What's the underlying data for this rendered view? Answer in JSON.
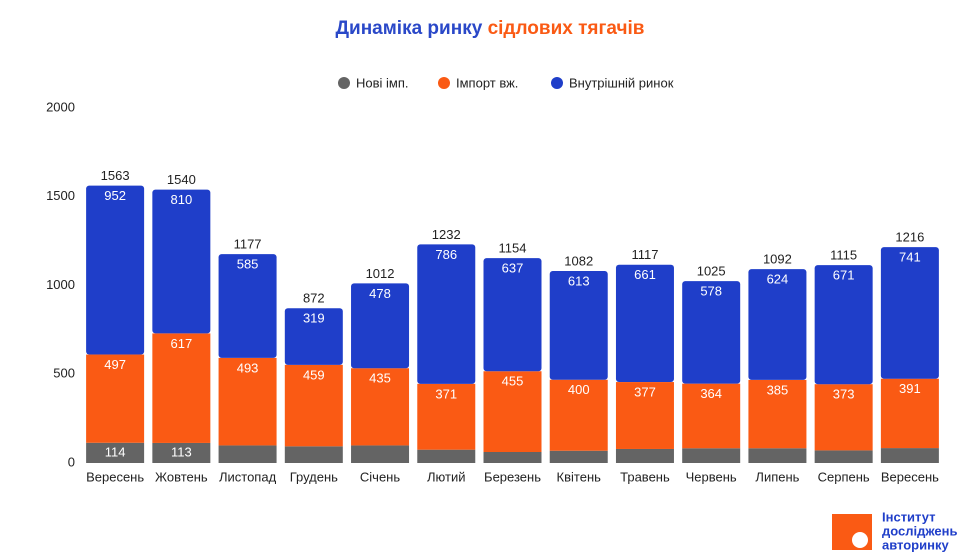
{
  "chart_data": {
    "type": "stacked_bar",
    "title": "Динаміка ринку",
    "title_highlight": "сідлових тягачів",
    "categories": [
      "Вересень",
      "Жовтень",
      "Листопад",
      "Грудень",
      "Січень",
      "Лютий",
      "Березень",
      "Квітень",
      "Травень",
      "Червень",
      "Липень",
      "Серпень",
      "Вересень"
    ],
    "series": [
      {
        "name": "Нові імп.",
        "color": "#646464",
        "values": [
          114,
          113,
          99,
          94,
          99,
          75,
          62,
          69,
          79,
          83,
          83,
          71,
          84
        ],
        "value_labels": [
          "114",
          "113",
          null,
          null,
          null,
          null,
          null,
          null,
          null,
          null,
          null,
          null,
          null
        ]
      },
      {
        "name": "Імпорт вж.",
        "color": "#fa5a14",
        "values": [
          497,
          617,
          493,
          459,
          435,
          371,
          455,
          400,
          377,
          364,
          385,
          373,
          391
        ]
      },
      {
        "name": "Внутрішній ринок",
        "color": "#1f3ec9",
        "values": [
          952,
          810,
          585,
          319,
          478,
          786,
          637,
          613,
          661,
          578,
          624,
          671,
          741
        ]
      }
    ],
    "totals": [
      1563,
      1540,
      1177,
      872,
      1012,
      1232,
      1154,
      1082,
      1117,
      1025,
      1092,
      1115,
      1216
    ],
    "ylim": [
      0,
      2000
    ],
    "yticks": [
      0,
      500,
      1000,
      1500,
      2000
    ],
    "grid": false,
    "legend": "top",
    "logo": [
      "Інститут",
      "досліджень",
      "авторинку"
    ]
  }
}
